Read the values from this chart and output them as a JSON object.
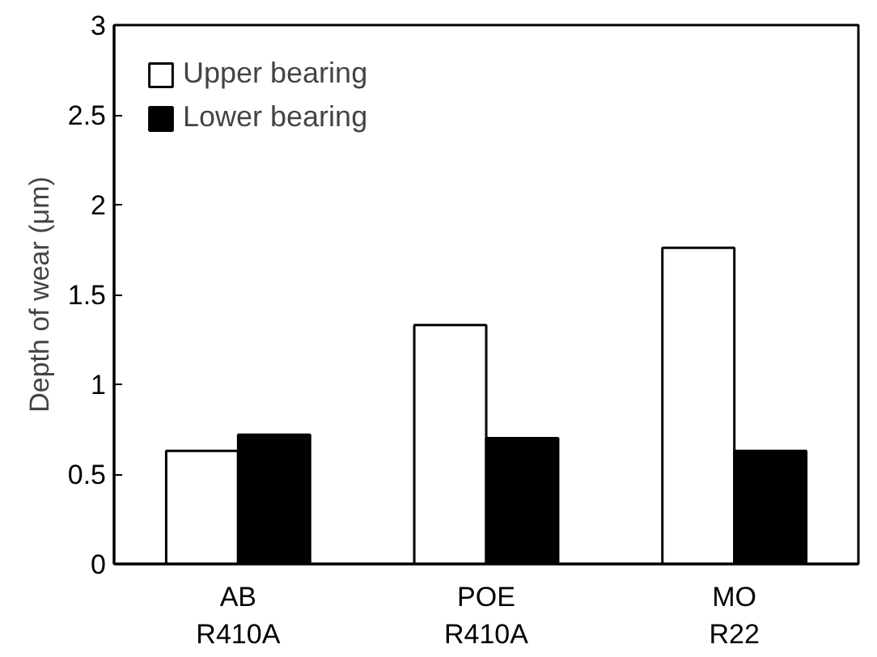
{
  "chart_data": {
    "type": "bar",
    "ylabel": "Depth of wear (μm)",
    "categories": [
      "AB\nR410A",
      "POE\nR410A",
      "MO\nR22"
    ],
    "series": [
      {
        "name": "Upper bearing",
        "color": "#ffffff",
        "values": [
          0.63,
          1.33,
          1.76
        ]
      },
      {
        "name": "Lower bearing",
        "color": "#000000",
        "values": [
          0.72,
          0.7,
          0.63
        ]
      }
    ],
    "ylim": [
      0,
      3
    ],
    "yticks": [
      0,
      0.5,
      1,
      1.5,
      2,
      2.5,
      3
    ],
    "grid": false,
    "legend": "top left"
  }
}
